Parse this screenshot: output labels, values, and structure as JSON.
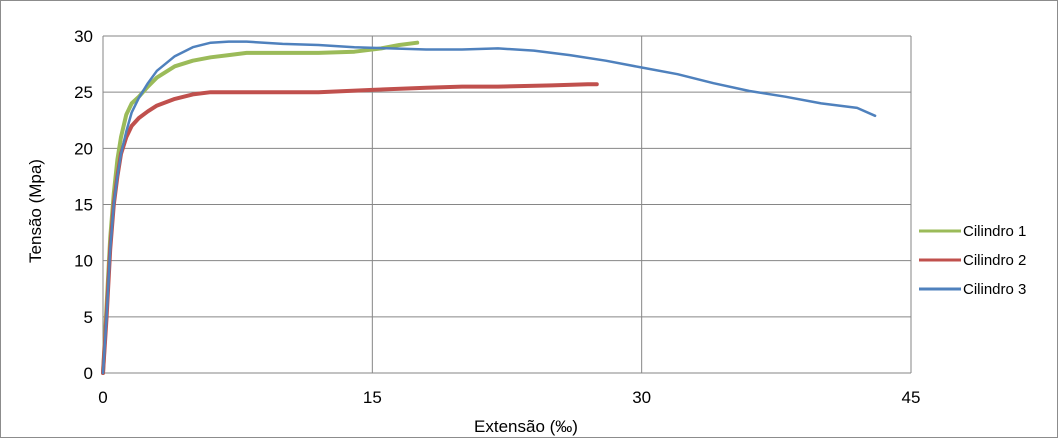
{
  "chart_data": {
    "type": "line",
    "xlabel": "Extensão (‰)",
    "ylabel": "Tensão (Mpa)",
    "xlim": [
      0,
      45
    ],
    "ylim": [
      0,
      30
    ],
    "xticks": [
      "0",
      "15",
      "30",
      "45"
    ],
    "yticks": [
      "0",
      "5",
      "10",
      "15",
      "20",
      "25",
      "30"
    ],
    "grid": true,
    "legend_position": "right",
    "series": [
      {
        "name": "Cilindro 1",
        "color": "#9bbb59",
        "x": [
          0,
          0.2,
          0.4,
          0.6,
          0.8,
          1.0,
          1.3,
          1.6,
          2.0,
          2.5,
          3.0,
          4.0,
          5.0,
          6.0,
          7.0,
          8.0,
          10.0,
          12.0,
          14.0,
          15.5,
          16.5,
          17.5
        ],
        "y": [
          0,
          6,
          12,
          16,
          19,
          21,
          23,
          24,
          24.6,
          25.5,
          26.3,
          27.3,
          27.8,
          28.1,
          28.3,
          28.5,
          28.5,
          28.5,
          28.6,
          28.9,
          29.2,
          29.4
        ]
      },
      {
        "name": "Cilindro 2",
        "color": "#c0504d",
        "x": [
          0,
          0.2,
          0.4,
          0.6,
          0.8,
          1.0,
          1.3,
          1.6,
          2.0,
          2.5,
          3.0,
          4.0,
          5.0,
          6.0,
          8.0,
          10.0,
          12.0,
          15.0,
          18.0,
          20.0,
          22.0,
          25.0,
          27.0,
          27.5
        ],
        "y": [
          0,
          5,
          11,
          15,
          17.5,
          19.5,
          21,
          22,
          22.7,
          23.3,
          23.8,
          24.4,
          24.8,
          25.0,
          25.0,
          25.0,
          25.0,
          25.2,
          25.4,
          25.5,
          25.5,
          25.6,
          25.7,
          25.7
        ]
      },
      {
        "name": "Cilindro 3",
        "color": "#4f81bd",
        "x": [
          0,
          0.2,
          0.4,
          0.6,
          0.8,
          1.0,
          1.3,
          1.6,
          2.0,
          2.5,
          3.0,
          4.0,
          5.0,
          6.0,
          7.0,
          8.0,
          10.0,
          12.0,
          14.0,
          16.0,
          18.0,
          20.0,
          22.0,
          24.0,
          26.0,
          28.0,
          30.0,
          32.0,
          34.0,
          36.0,
          38.0,
          40.0,
          42.0,
          43.0
        ],
        "y": [
          0,
          5,
          11,
          15,
          17.5,
          19.5,
          21.5,
          23.2,
          24.5,
          25.8,
          26.9,
          28.2,
          29.0,
          29.4,
          29.5,
          29.5,
          29.3,
          29.2,
          29.0,
          28.9,
          28.8,
          28.8,
          28.9,
          28.7,
          28.3,
          27.8,
          27.2,
          26.6,
          25.8,
          25.1,
          24.6,
          24.0,
          23.6,
          22.9
        ]
      }
    ]
  }
}
